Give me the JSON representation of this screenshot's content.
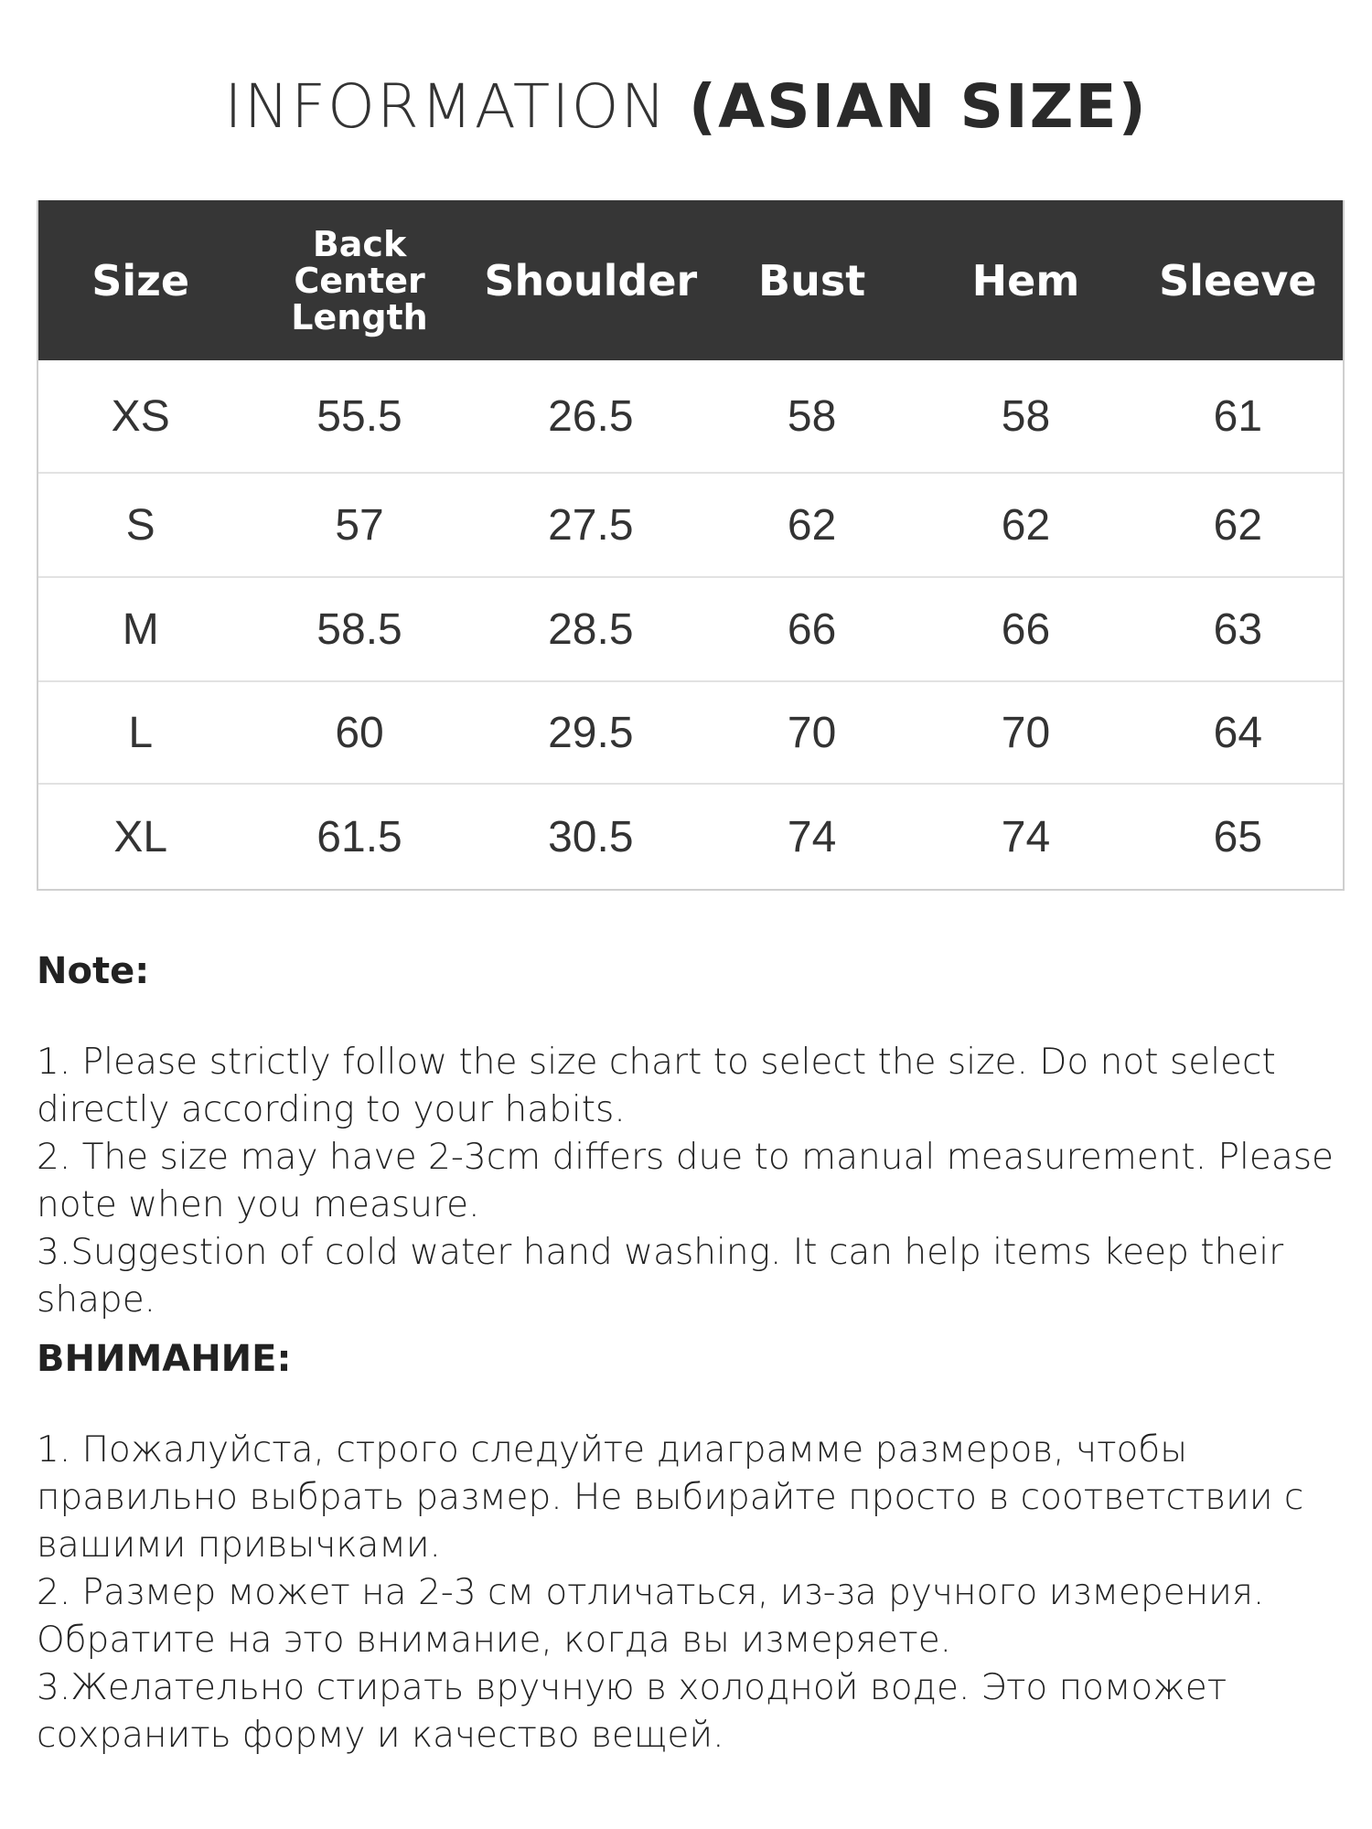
{
  "title": {
    "light": "INFORMATION ",
    "bold": "(ASIAN SIZE)"
  },
  "table": {
    "headers": [
      "Size",
      "Back Center Length",
      "Shoulder",
      "Bust",
      "Hem",
      "Sleeve"
    ],
    "rows": [
      [
        "XS",
        "55.5",
        "26.5",
        "58",
        "58",
        "61"
      ],
      [
        "S",
        "57",
        "27.5",
        "62",
        "62",
        "62"
      ],
      [
        "M",
        "58.5",
        "28.5",
        "66",
        "66",
        "63"
      ],
      [
        "L",
        "60",
        "29.5",
        "70",
        "70",
        "64"
      ],
      [
        "XL",
        "61.5",
        "30.5",
        "74",
        "74",
        "65"
      ]
    ]
  },
  "note_en": {
    "heading": "Note:",
    "items": [
      "1. Please strictly follow the size chart  to select the size. Do not select directly according to your habits.",
      "2. The size may have 2-3cm differs due to manual measurement. Please note when you measure.",
      "3.Suggestion of cold water hand washing. It can help items keep their shape."
    ]
  },
  "note_ru": {
    "heading": "ВНИМАНИЕ:",
    "items": [
      "1. Пожалуйста, строго следуйте диаграмме размеров, чтобы правильно выбрать размер. Не выбирайте просто в соответствии с вашими привычками.",
      "2. Размер может на 2-3 см отличаться, из-за ручного измерения. Обратите на это внимание, когда вы измеряете.",
      "3.Желательно стирать вручную в холодной воде. Это поможет сохранить форму и качество вещей."
    ]
  },
  "colors": {
    "header_bg": "#363636",
    "border": "#cfcfcf"
  }
}
